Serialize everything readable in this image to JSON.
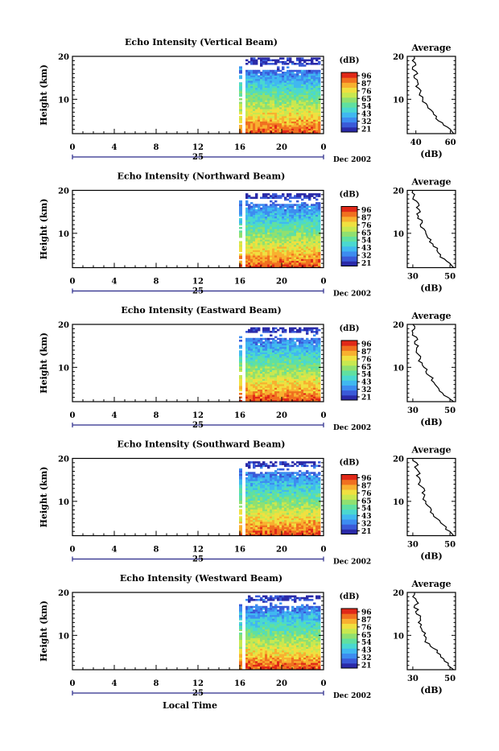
{
  "chart_data": [
    {
      "type": "heatmap",
      "title": "Echo Intensity (Vertical Beam)",
      "ylabel": "Height (km)",
      "xlabel": "",
      "xticks": [
        "0",
        "4",
        "8",
        "12",
        "16",
        "20",
        "0"
      ],
      "xlim": [
        0,
        24
      ],
      "yticks": [
        "20",
        "10"
      ],
      "ylim": [
        2,
        20
      ],
      "day_label": "25",
      "date_label": "Dec 2002",
      "data_start_hour": 16,
      "colorbar": {
        "unit": "(dB)",
        "ticks": [
          "96",
          "87",
          "76",
          "65",
          "54",
          "43",
          "32",
          "21"
        ]
      },
      "average": {
        "title": "Average",
        "xlabel": "(dB)",
        "xticks": [
          "40",
          "60"
        ],
        "xlim": [
          35,
          63
        ],
        "yticks": [
          "20",
          "10"
        ],
        "ylim": [
          2,
          20
        ],
        "profile": [
          [
            62,
            2
          ],
          [
            60,
            3
          ],
          [
            56,
            4
          ],
          [
            53,
            5
          ],
          [
            52,
            6
          ],
          [
            50,
            7
          ],
          [
            47,
            8
          ],
          [
            46,
            9
          ],
          [
            44,
            10
          ],
          [
            42,
            11
          ],
          [
            43,
            12
          ],
          [
            40,
            13
          ],
          [
            41,
            14
          ],
          [
            39,
            15
          ],
          [
            41,
            16
          ],
          [
            38,
            17
          ],
          [
            40,
            18
          ],
          [
            38,
            19
          ],
          [
            39,
            20
          ]
        ]
      }
    },
    {
      "type": "heatmap",
      "title": "Echo Intensity (Northward Beam)",
      "ylabel": "Height (km)",
      "xlabel": "",
      "xticks": [
        "0",
        "4",
        "8",
        "12",
        "16",
        "20",
        "0"
      ],
      "xlim": [
        0,
        24
      ],
      "yticks": [
        "20",
        "10"
      ],
      "ylim": [
        2,
        20
      ],
      "day_label": "25",
      "date_label": "Dec 2002",
      "data_start_hour": 16,
      "colorbar": {
        "unit": "(dB)",
        "ticks": [
          "96",
          "87",
          "76",
          "65",
          "54",
          "43",
          "32",
          "21"
        ]
      },
      "average": {
        "title": "Average",
        "xlabel": "(dB)",
        "xticks": [
          "30",
          "50"
        ],
        "xlim": [
          27,
          53
        ],
        "yticks": [
          "20",
          "10"
        ],
        "ylim": [
          2,
          20
        ],
        "profile": [
          [
            52,
            2
          ],
          [
            50,
            3
          ],
          [
            47,
            4
          ],
          [
            45,
            5
          ],
          [
            43,
            6
          ],
          [
            41,
            7
          ],
          [
            39,
            8
          ],
          [
            38,
            9
          ],
          [
            37,
            10
          ],
          [
            36,
            11
          ],
          [
            34,
            12
          ],
          [
            35,
            13
          ],
          [
            33,
            14
          ],
          [
            34,
            15
          ],
          [
            32,
            16
          ],
          [
            33,
            17
          ],
          [
            30,
            18
          ],
          [
            31,
            19
          ],
          [
            30,
            20
          ]
        ]
      }
    },
    {
      "type": "heatmap",
      "title": "Echo Intensity (Eastward Beam)",
      "ylabel": "Height (km)",
      "xlabel": "",
      "xticks": [
        "0",
        "4",
        "8",
        "12",
        "16",
        "20",
        "0"
      ],
      "xlim": [
        0,
        24
      ],
      "yticks": [
        "20",
        "10"
      ],
      "ylim": [
        2,
        20
      ],
      "day_label": "25",
      "date_label": "Dec 2002",
      "data_start_hour": 16,
      "colorbar": {
        "unit": "(dB)",
        "ticks": [
          "96",
          "87",
          "76",
          "65",
          "54",
          "43",
          "32",
          "21"
        ]
      },
      "average": {
        "title": "Average",
        "xlabel": "(dB)",
        "xticks": [
          "30",
          "50"
        ],
        "xlim": [
          27,
          53
        ],
        "yticks": [
          "20",
          "10"
        ],
        "ylim": [
          2,
          20
        ],
        "profile": [
          [
            52,
            2
          ],
          [
            49,
            3
          ],
          [
            46,
            4
          ],
          [
            44,
            5
          ],
          [
            42,
            6
          ],
          [
            40,
            7
          ],
          [
            39,
            8
          ],
          [
            37,
            9
          ],
          [
            36,
            10
          ],
          [
            35,
            11
          ],
          [
            34,
            12
          ],
          [
            33,
            13
          ],
          [
            32,
            14
          ],
          [
            33,
            15
          ],
          [
            31,
            16
          ],
          [
            32,
            17
          ],
          [
            30,
            18
          ],
          [
            31,
            19
          ],
          [
            30,
            20
          ]
        ]
      }
    },
    {
      "type": "heatmap",
      "title": "Echo Intensity (Southward Beam)",
      "ylabel": "Height (km)",
      "xlabel": "",
      "xticks": [
        "0",
        "4",
        "8",
        "12",
        "16",
        "20",
        "0"
      ],
      "xlim": [
        0,
        24
      ],
      "yticks": [
        "20",
        "10"
      ],
      "ylim": [
        2,
        20
      ],
      "day_label": "25",
      "date_label": "Dec 2002",
      "data_start_hour": 16,
      "colorbar": {
        "unit": "(dB)",
        "ticks": [
          "96",
          "87",
          "76",
          "65",
          "54",
          "43",
          "32",
          "21"
        ]
      },
      "average": {
        "title": "Average",
        "xlabel": "(dB)",
        "xticks": [
          "30",
          "50"
        ],
        "xlim": [
          27,
          53
        ],
        "yticks": [
          "20",
          "10"
        ],
        "ylim": [
          2,
          20
        ],
        "profile": [
          [
            52,
            2
          ],
          [
            50,
            3
          ],
          [
            48,
            4
          ],
          [
            45,
            5
          ],
          [
            43,
            6
          ],
          [
            41,
            7
          ],
          [
            40,
            8
          ],
          [
            38,
            9
          ],
          [
            37,
            10
          ],
          [
            36,
            11
          ],
          [
            35,
            12
          ],
          [
            36,
            13
          ],
          [
            33,
            14
          ],
          [
            34,
            15
          ],
          [
            32,
            16
          ],
          [
            33,
            17
          ],
          [
            31,
            18
          ],
          [
            32,
            19
          ],
          [
            30,
            20
          ]
        ]
      }
    },
    {
      "type": "heatmap",
      "title": "Echo Intensity (Westward Beam)",
      "ylabel": "Height (km)",
      "xlabel": "Local Time",
      "xticks": [
        "0",
        "4",
        "8",
        "12",
        "16",
        "20",
        "0"
      ],
      "xlim": [
        0,
        24
      ],
      "yticks": [
        "20",
        "10"
      ],
      "ylim": [
        2,
        20
      ],
      "day_label": "25",
      "date_label": "Dec 2002",
      "data_start_hour": 16,
      "colorbar": {
        "unit": "(dB)",
        "ticks": [
          "96",
          "87",
          "76",
          "65",
          "54",
          "43",
          "32",
          "21"
        ]
      },
      "average": {
        "title": "Average",
        "xlabel": "(dB)",
        "xticks": [
          "30",
          "50"
        ],
        "xlim": [
          27,
          53
        ],
        "yticks": [
          "20",
          "10"
        ],
        "ylim": [
          2,
          20
        ],
        "profile": [
          [
            52,
            2
          ],
          [
            49,
            3
          ],
          [
            47,
            4
          ],
          [
            45,
            5
          ],
          [
            43,
            6
          ],
          [
            41,
            7
          ],
          [
            39,
            8
          ],
          [
            37,
            9
          ],
          [
            36,
            10
          ],
          [
            35,
            11
          ],
          [
            34,
            12
          ],
          [
            33,
            13
          ],
          [
            34,
            14
          ],
          [
            32,
            15
          ],
          [
            33,
            16
          ],
          [
            31,
            17
          ],
          [
            32,
            18
          ],
          [
            30,
            19
          ],
          [
            31,
            20
          ]
        ]
      }
    }
  ],
  "colorscale": [
    "#2a2aa8",
    "#3a5ad8",
    "#3d8cf0",
    "#40b8f0",
    "#4ad8d0",
    "#60e0a0",
    "#90e070",
    "#c8e850",
    "#f0e040",
    "#f8b030",
    "#f07020",
    "#e02818"
  ]
}
